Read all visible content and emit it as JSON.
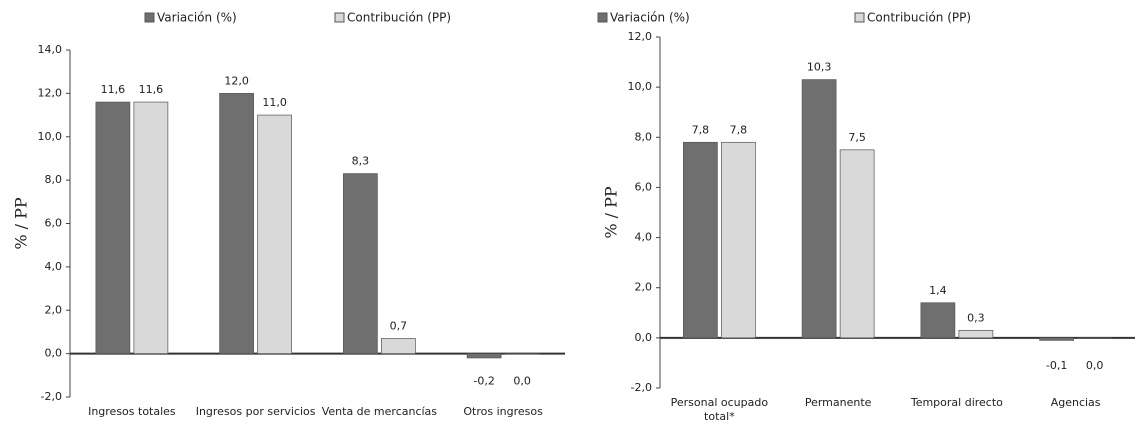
{
  "chart_data": [
    {
      "type": "bar",
      "ylabel": "% / PP",
      "categories": [
        "Ingresos totales",
        "Ingresos por servicios",
        "Venta de mercancías",
        "Otros ingresos"
      ],
      "series": [
        {
          "name": "Variación (%)",
          "color": "#6f6f6f",
          "values": [
            11.6,
            12.0,
            8.3,
            -0.2
          ],
          "value_labels": [
            "11,6",
            "12,0",
            "8,3",
            "-0,2"
          ]
        },
        {
          "name": "Contribución (PP)",
          "color": "#d9d9d9",
          "values": [
            11.6,
            11.0,
            0.7,
            0.0
          ],
          "value_labels": [
            "11,6",
            "11,0",
            "0,7",
            "0,0"
          ]
        }
      ],
      "ylim": [
        -2,
        14
      ],
      "yticks": [
        {
          "value": -2,
          "label": "-2,0"
        },
        {
          "value": 0,
          "label": "0,0"
        },
        {
          "value": 2,
          "label": "2,0"
        },
        {
          "value": 4,
          "label": "4,0"
        },
        {
          "value": 6,
          "label": "6,0"
        },
        {
          "value": 8,
          "label": "8,0"
        },
        {
          "value": 10,
          "label": "10,0"
        },
        {
          "value": 12,
          "label": "12,0"
        },
        {
          "value": 14,
          "label": "14,0"
        }
      ]
    },
    {
      "type": "bar",
      "ylabel": "% / PP",
      "categories": [
        "Personal ocupado total*",
        "Permanente",
        "Temporal directo",
        "Agencias"
      ],
      "series": [
        {
          "name": "Variación (%)",
          "color": "#6f6f6f",
          "values": [
            7.8,
            10.3,
            1.4,
            -0.1
          ],
          "value_labels": [
            "7,8",
            "10,3",
            "1,4",
            "-0,1"
          ]
        },
        {
          "name": "Contribución (PP)",
          "color": "#d9d9d9",
          "values": [
            7.8,
            7.5,
            0.3,
            0.0
          ],
          "value_labels": [
            "7,8",
            "7,5",
            "0,3",
            "0,0"
          ]
        }
      ],
      "ylim": [
        -2,
        12
      ],
      "yticks": [
        {
          "value": -2,
          "label": "-2,0"
        },
        {
          "value": 0,
          "label": "0,0"
        },
        {
          "value": 2,
          "label": "2,0"
        },
        {
          "value": 4,
          "label": "4,0"
        },
        {
          "value": 6,
          "label": "6,0"
        },
        {
          "value": 8,
          "label": "8,0"
        },
        {
          "value": 10,
          "label": "10,0"
        },
        {
          "value": 12,
          "label": "12,0"
        }
      ]
    }
  ]
}
